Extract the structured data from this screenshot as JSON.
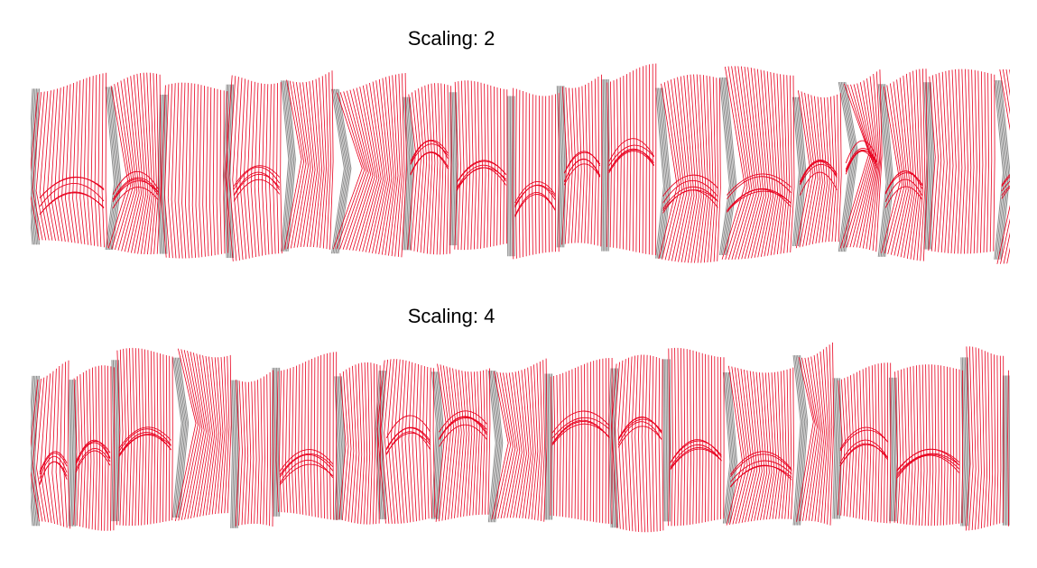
{
  "panels": [
    {
      "title": "Scaling: 2",
      "seed": 7,
      "scaling": 2
    },
    {
      "title": "Scaling: 4",
      "seed": 19,
      "scaling": 4
    }
  ],
  "colors": {
    "front_lines": "#e8001e",
    "back_lines": "#7a7a7a",
    "background": "#ffffff"
  }
}
